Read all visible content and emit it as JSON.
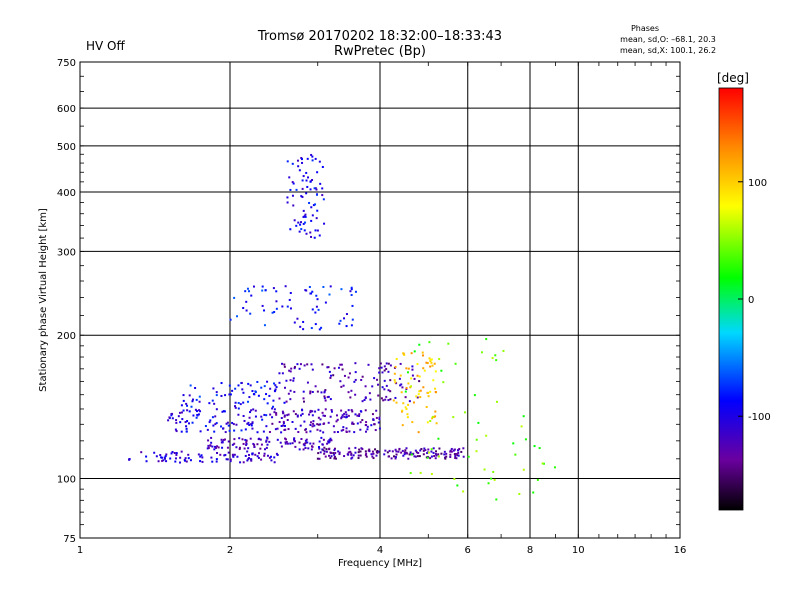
{
  "header": {
    "status": "HV Off",
    "status_color": "#cc0000",
    "title_line1": "Tromsø 20170202 18:32:00–18:33:43",
    "title_line2": "RwPretec (Bp)",
    "phases_title": "Phases",
    "phases_line1": "mean, sd,O: –68.1, 20.3",
    "phases_line2": "mean, sd,X: 100.1, 26.2"
  },
  "chart_data": {
    "type": "scatter",
    "title": "Tromsø 20170202 18:32:00–18:33:43",
    "subtitle": "RwPretec (Bp)",
    "xlabel": "Frequency [MHz]",
    "ylabel": "Stationary phase Virtual Height [km]",
    "x_scale": "log",
    "y_scale": "log",
    "xlim": [
      1,
      16
    ],
    "ylim": [
      75,
      750
    ],
    "x_ticks": [
      {
        "value": 1,
        "label": "1"
      },
      {
        "value": 2,
        "label": "2"
      },
      {
        "value": 4,
        "label": "4"
      },
      {
        "value": 6,
        "label": "6"
      },
      {
        "value": 8,
        "label": "8"
      },
      {
        "value": 10,
        "label": "10"
      },
      {
        "value": 16,
        "label": "16"
      }
    ],
    "y_ticks": [
      {
        "value": 75,
        "label": "75"
      },
      {
        "value": 100,
        "label": "100"
      },
      {
        "value": 200,
        "label": "200"
      },
      {
        "value": 300,
        "label": "300"
      },
      {
        "value": 400,
        "label": "400"
      },
      {
        "value": 500,
        "label": "500"
      },
      {
        "value": 600,
        "label": "600"
      },
      {
        "value": 750,
        "label": "750"
      }
    ],
    "x_grid": [
      2,
      4,
      6,
      8,
      10
    ],
    "y_grid": [
      100,
      200,
      300,
      400,
      500,
      600
    ],
    "colorbar": {
      "label": "[deg]",
      "range": [
        -180,
        180
      ],
      "ticks": [
        {
          "value": 100,
          "label": "100"
        },
        {
          "value": 0,
          "label": "0"
        },
        {
          "value": -100,
          "label": "-100"
        }
      ]
    },
    "clusters": [
      {
        "name": "lower-trace-a",
        "x": [
          1.25,
          2.5
        ],
        "y": [
          108,
          114
        ],
        "phase": -110,
        "n": 90
      },
      {
        "name": "lower-trace-b",
        "x": [
          1.8,
          3.2
        ],
        "y": [
          115,
          122
        ],
        "phase": -120,
        "n": 110
      },
      {
        "name": "lower-trace-c",
        "x": [
          3.0,
          6.0
        ],
        "y": [
          110,
          116
        ],
        "phase": -130,
        "n": 160
      },
      {
        "name": "mid-trace-a",
        "x": [
          1.5,
          2.4
        ],
        "y": [
          125,
          140
        ],
        "phase": -100,
        "n": 90
      },
      {
        "name": "mid-trace-b",
        "x": [
          2.4,
          4.0
        ],
        "y": [
          125,
          140
        ],
        "phase": -120,
        "n": 140
      },
      {
        "name": "upper-trace-a",
        "x": [
          1.6,
          2.6
        ],
        "y": [
          140,
          160
        ],
        "phase": -90,
        "n": 70
      },
      {
        "name": "upper-trace-b",
        "x": [
          2.5,
          4.8
        ],
        "y": [
          145,
          175
        ],
        "phase": -125,
        "n": 130
      },
      {
        "name": "x-mode-trace",
        "x": [
          4.2,
          5.2
        ],
        "y": [
          125,
          185
        ],
        "phase": 105,
        "n": 70
      },
      {
        "name": "f-layer-trace",
        "x": [
          2.0,
          3.6
        ],
        "y": [
          205,
          255
        ],
        "phase": -85,
        "n": 70
      },
      {
        "name": "spread-f",
        "x": [
          2.6,
          3.1
        ],
        "y": [
          320,
          480
        ],
        "phase": -95,
        "n": 80
      },
      {
        "name": "high-scatter",
        "x": [
          4.5,
          9.0
        ],
        "y": [
          90,
          200
        ],
        "phase": 40,
        "n": 60
      }
    ]
  }
}
